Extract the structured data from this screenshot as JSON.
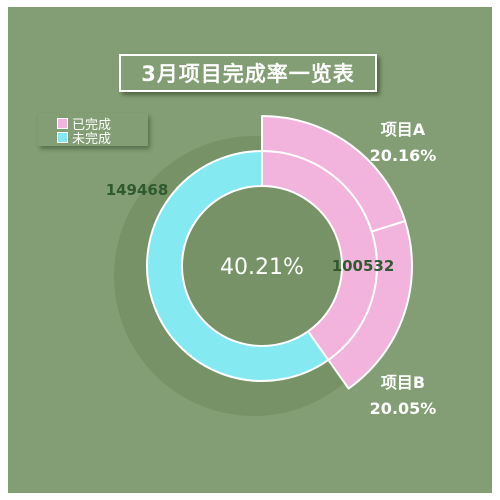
{
  "chart_data": {
    "type": "doughnut",
    "title": "3月项目完成率一览表",
    "legend": [
      {
        "name": "已完成",
        "color": "#f2b3dc"
      },
      {
        "name": "未完成",
        "color": "#85e9f2"
      }
    ],
    "inner_ring": {
      "values": [
        {
          "category": "已完成",
          "value": 100532
        },
        {
          "category": "未完成",
          "value": 149468
        }
      ],
      "value_labels": [
        "100532",
        "149468"
      ],
      "center_label": "40.21%"
    },
    "outer_ring": {
      "segments": [
        {
          "name": "项目A",
          "percent": 20.16,
          "label": "20.16%"
        },
        {
          "name": "项目B",
          "percent": 20.05,
          "label": "20.05%"
        }
      ]
    }
  },
  "colors": {
    "background": "#839e74",
    "completed": "#f2b3dc",
    "uncompleted": "#85e9f2",
    "value_text": "#2f5a2f",
    "shadow": "#70895f"
  }
}
